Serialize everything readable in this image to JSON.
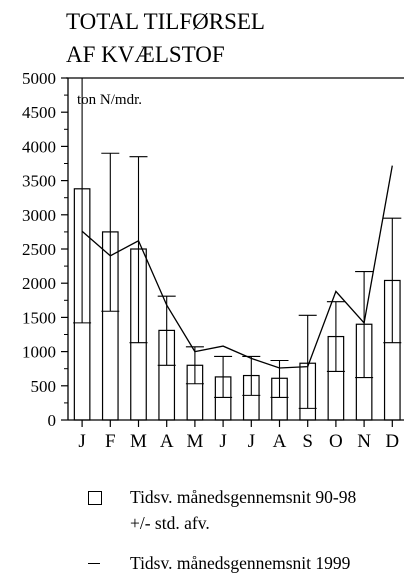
{
  "chart_data": {
    "type": "bar",
    "title": [
      "TOTAL TILFØRSEL",
      "AF KVÆLSTOF"
    ],
    "unit_label": "ton N/mdr.",
    "categories": [
      "J",
      "F",
      "M",
      "A",
      "M",
      "J",
      "J",
      "A",
      "S",
      "O",
      "N",
      "D"
    ],
    "ylim": [
      0,
      5000
    ],
    "yticks": [
      "0",
      "500",
      "1000",
      "1500",
      "2000",
      "2500",
      "3000",
      "3500",
      "4000",
      "4500",
      "5000"
    ],
    "series": [
      {
        "name": "Tidsv. månedsgennemsnit 90-98 +/- std. afv.",
        "kind": "bar-with-error",
        "values": [
          3380,
          2750,
          2500,
          1310,
          800,
          630,
          650,
          610,
          830,
          1220,
          1400,
          2040
        ],
        "error_low": [
          1420,
          1590,
          1130,
          800,
          530,
          330,
          360,
          330,
          170,
          710,
          620,
          1130
        ],
        "error_high": [
          5330,
          3900,
          3850,
          1810,
          1070,
          930,
          930,
          870,
          1530,
          1730,
          2170,
          2950
        ]
      },
      {
        "name": "Tidsv. månedsgennemsnit 1999",
        "kind": "line",
        "values": [
          2760,
          2400,
          2620,
          1680,
          1000,
          1080,
          900,
          760,
          780,
          1880,
          1420,
          3720
        ]
      }
    ],
    "legend": [
      {
        "symbol": "box",
        "lines": [
          "Tidsv. månedsgennemsnit 90-98",
          "+/- std. afv."
        ]
      },
      {
        "symbol": "dash",
        "lines": [
          "Tidsv. månedsgennemsnit 1999"
        ]
      }
    ]
  }
}
